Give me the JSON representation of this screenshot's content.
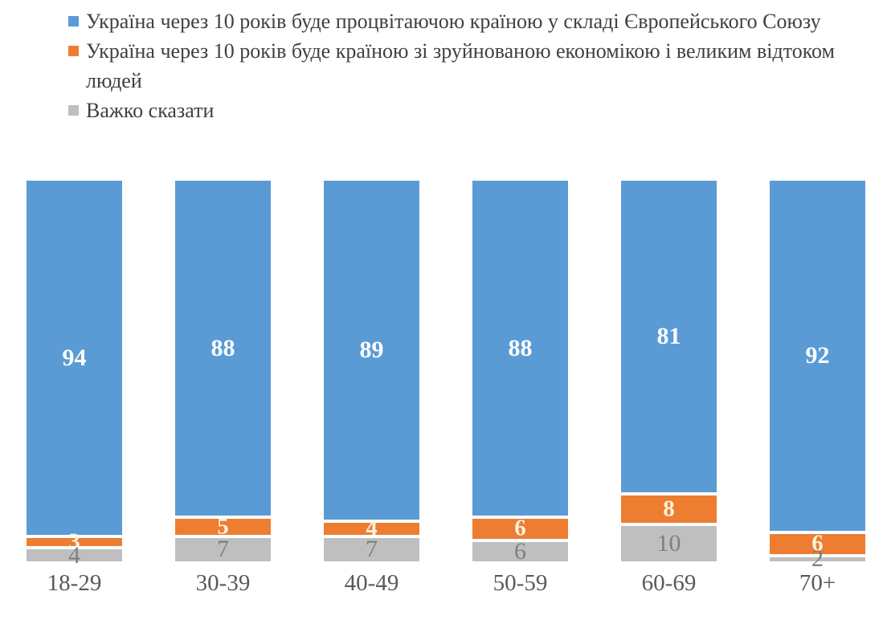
{
  "chart_data": {
    "type": "bar",
    "variant": "stacked-100-percent-vertical",
    "title": "",
    "xlabel": "",
    "ylabel": "",
    "grid": false,
    "legend_position": "top-left",
    "axis_ticks_visible": false,
    "categories": [
      "18-29",
      "30-39",
      "40-49",
      "50-59",
      "60-69",
      "70+"
    ],
    "series": [
      {
        "name": "Україна через 10 років буде процвітаючою країною у складі Європейського Союзу",
        "color": "#5B9BD5",
        "label_color": "#FFFFFF",
        "values": [
          94,
          88,
          89,
          88,
          81,
          92
        ]
      },
      {
        "name": "Україна через 10 років буде країною зі зруйнованою економікою і великим відтоком людей",
        "color": "#ED7D31",
        "label_color": "#FAF2DC",
        "values": [
          3,
          5,
          4,
          6,
          8,
          6
        ]
      },
      {
        "name": "Важко сказати",
        "color": "#BFBFBF",
        "label_color": "#7F7F7F",
        "values": [
          4,
          7,
          7,
          6,
          10,
          2
        ]
      }
    ],
    "value_labels_inside_segments": true,
    "colors": {
      "background": "#FFFFFF",
      "legend_text": "#404040",
      "axis_label_text": "#595959",
      "segment_gap": "#FFFFFF"
    }
  }
}
